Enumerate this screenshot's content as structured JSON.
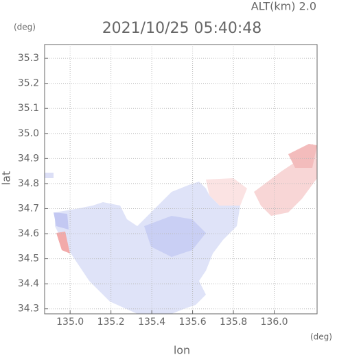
{
  "chart_data": {
    "type": "map",
    "title": "2021/10/25 05:40:48",
    "annotation": "ALT(km) 2.0",
    "y_unit": "(deg)",
    "x_unit": "(deg)",
    "xlabel": "lon",
    "ylabel": "lat",
    "xlim": [
      134.875,
      136.21
    ],
    "ylim": [
      34.28,
      35.355
    ],
    "xticks": [
      {
        "value": 135,
        "label": "135.0"
      },
      135.2,
      135.4,
      135.6,
      135.8,
      {
        "value": 136,
        "label": "136.0"
      }
    ],
    "yticks": [
      34.3,
      34.4,
      34.5,
      34.6,
      34.7,
      34.8,
      34.9,
      {
        "value": 35,
        "label": "35.0"
      },
      35.1,
      35.2,
      35.3
    ],
    "grid": true
  }
}
